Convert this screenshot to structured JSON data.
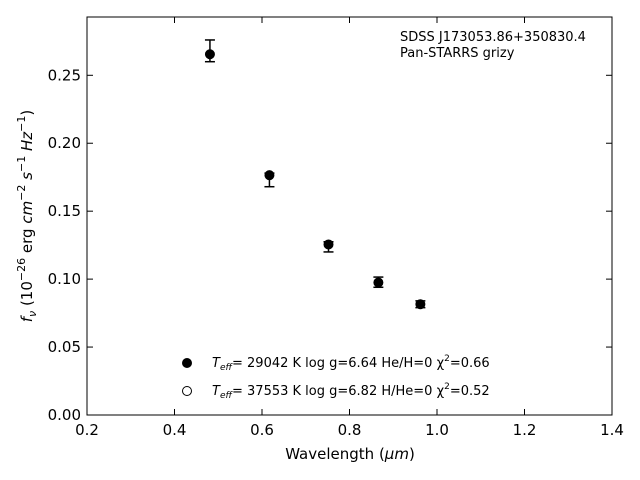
{
  "chart_data": {
    "type": "scatter",
    "annotation_lines": [
      "SDSS J173053.86+350830.4",
      "Pan-STARRS grizy"
    ],
    "xlabel_prefix": "Wavelength (",
    "xlabel_unit": "μm",
    "xlabel_suffix": ")",
    "ylabel_base": "f",
    "ylabel_sub": "ν",
    "ylabel_open": " (10",
    "ylabel_exp1": "−26",
    "ylabel_mid1": " erg ",
    "ylabel_cm": "cm",
    "ylabel_exp2": "−2",
    "ylabel_s": "s",
    "ylabel_exp3": "−1",
    "ylabel_hz": "Hz",
    "ylabel_exp4": "−1",
    "ylabel_close": ")",
    "xlim": [
      0.2,
      1.4
    ],
    "ylim": [
      0.0,
      0.2929
    ],
    "xticks": [
      0.2,
      0.4,
      0.6,
      0.8,
      1.0,
      1.2,
      1.4
    ],
    "xtick_labels": [
      "0.2",
      "0.4",
      "0.6",
      "0.8",
      "1.0",
      "1.2",
      "1.4"
    ],
    "yticks": [
      0.0,
      0.05,
      0.1,
      0.15,
      0.2,
      0.25
    ],
    "ytick_labels": [
      "0.00",
      "0.05",
      "0.10",
      "0.15",
      "0.20",
      "0.25"
    ],
    "grid": false,
    "legend_position": "bottom-center",
    "series": [
      {
        "legend_teff": "T",
        "legend_teff_sub": "eff",
        "legend_text": "= 29042 K  log g=6.64  He/H=0  χ",
        "legend_chi_exp": "2",
        "legend_chi_val": "=0.66",
        "marker": "filled",
        "color": "#000000",
        "x": [
          0.481,
          0.617,
          0.752,
          0.866,
          0.962
        ],
        "y": [
          0.2655,
          0.1765,
          0.1255,
          0.0975,
          0.0815
        ]
      },
      {
        "legend_teff": "T",
        "legend_teff_sub": "eff",
        "legend_text": "= 37553 K  log g=6.82  H/He=0  χ",
        "legend_chi_exp": "2",
        "legend_chi_val": "=0.52",
        "marker": "open",
        "color": "#000000",
        "x": [],
        "y": []
      }
    ],
    "observed": {
      "x": [
        0.481,
        0.617,
        0.752,
        0.866,
        0.962
      ],
      "y": [
        0.2685,
        0.1755,
        0.1245,
        0.0975,
        0.0815
      ],
      "yerr_low": [
        0.0085,
        0.0075,
        0.0045,
        0.0035,
        0.0025
      ],
      "yerr_high": [
        0.0075,
        0.0025,
        0.003,
        0.004,
        0.0025
      ]
    }
  }
}
